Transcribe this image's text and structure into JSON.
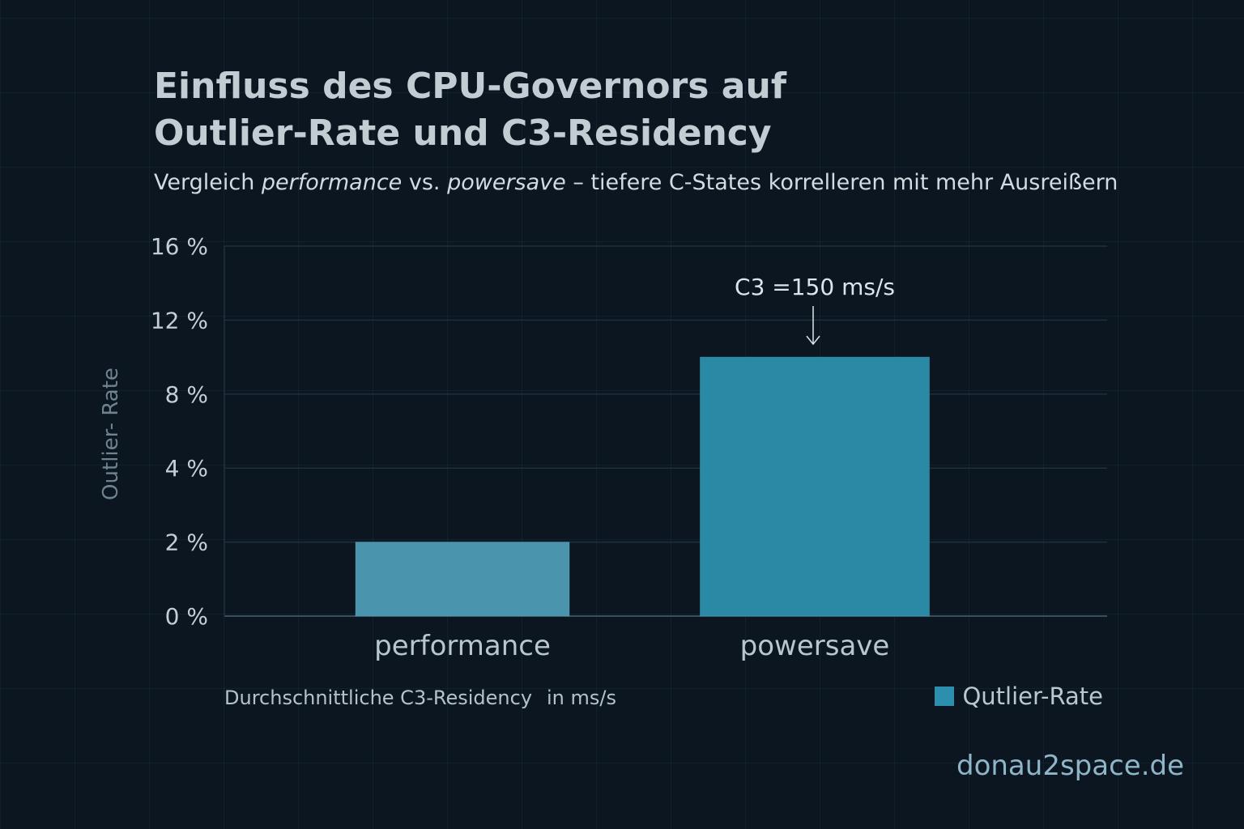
{
  "title": {
    "line1": "Einfluss des CPU-Governors auf",
    "line2": "Outlier-Rate und C3-Residency"
  },
  "subtitle": {
    "prefix": "Vergleich ",
    "em1": "performance",
    "middle": " vs. ",
    "em2": "powersave",
    "suffix": " – tiefere C-States korrelleren mit mehr Ausreißern"
  },
  "x_caption": {
    "part1": "Durchschnittliche C3-Residency",
    "part2": "in ms/s"
  },
  "legend": {
    "label": "Qutlier-Rate"
  },
  "brand": "donau2space.de",
  "colors": {
    "background": "#0b1620",
    "bar_performance": "#4a95ad",
    "bar_powersave": "#2a8aa6",
    "axis_text": "#c4ced6"
  },
  "chart_data": {
    "type": "bar",
    "title": "Einfluss des CPU-Governors auf Outlier-Rate und C3-Residency",
    "ylabel": "Outlier- Rate",
    "xlabel": "Durchschnittliche C3-Residency in ms/s",
    "categories": [
      "performance",
      "powersave"
    ],
    "series": [
      {
        "name": "Qutlier-Rate",
        "values": [
          2,
          10
        ]
      }
    ],
    "y_ticks": [
      0,
      2,
      4,
      8,
      12,
      16
    ],
    "y_tick_labels": [
      "0 %",
      "2 %",
      "4 %",
      "8 %",
      "12 %",
      "16 %"
    ],
    "y_tick_scale": "non-linear",
    "annotation": {
      "category": "powersave",
      "text": "C3 =150 ms/s"
    },
    "legend_position": "bottom-right",
    "grid": true
  }
}
